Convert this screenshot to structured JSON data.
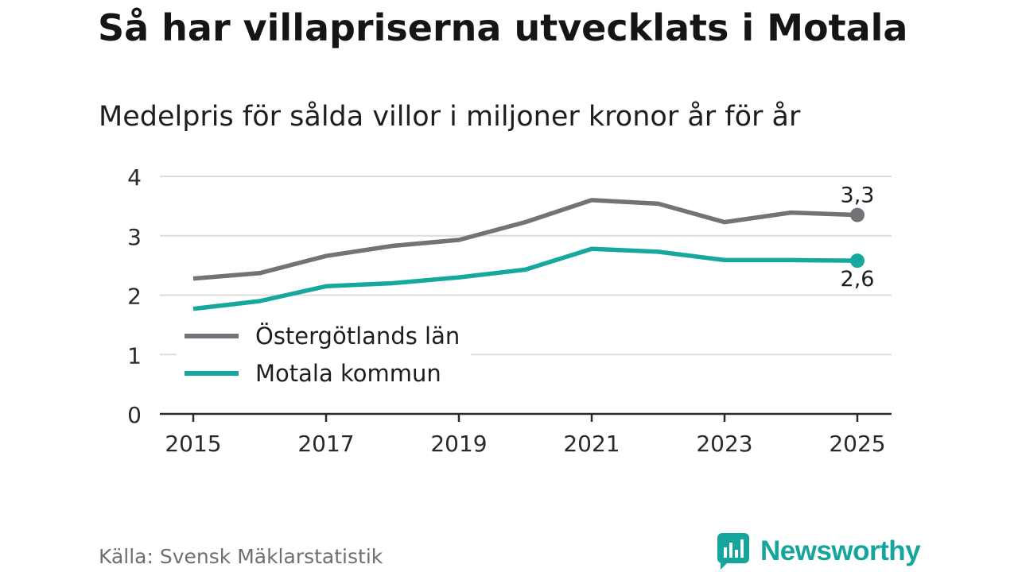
{
  "title": "Så har villapriserna utvecklats i Motala",
  "subtitle": "Medelpris för sålda villor i miljoner kronor år för år",
  "source": "Källa: Svensk Mäklarstatistik",
  "brand": "Newsworthy",
  "colors": {
    "lan": "#737278",
    "kommun": "#16a79f",
    "grid": "#dcdcdc",
    "axis": "#2b2b2b",
    "brand": "#15a59c"
  },
  "chart_data": {
    "type": "line",
    "title": "Så har villapriserna utvecklats i Motala",
    "subtitle": "Medelpris för sålda villor i miljoner kronor år för år",
    "xlabel": "",
    "ylabel": "",
    "x": [
      2015,
      2016,
      2017,
      2018,
      2019,
      2020,
      2021,
      2022,
      2023,
      2024,
      2025
    ],
    "xticks": [
      "2015",
      "2017",
      "2019",
      "2021",
      "2023",
      "2025"
    ],
    "yticks": [
      "0",
      "1",
      "2",
      "3",
      "4"
    ],
    "ylim": [
      0,
      4
    ],
    "grid": true,
    "legend": "bottom-left",
    "series": [
      {
        "name": "Östergötlands län",
        "values": [
          2.28,
          2.37,
          2.66,
          2.83,
          2.93,
          3.23,
          3.6,
          3.54,
          3.23,
          3.39,
          3.35
        ],
        "end_label": "3,3"
      },
      {
        "name": "Motala kommun",
        "values": [
          1.77,
          1.9,
          2.15,
          2.2,
          2.3,
          2.43,
          2.78,
          2.73,
          2.59,
          2.59,
          2.58
        ],
        "end_label": "2,6"
      }
    ]
  }
}
